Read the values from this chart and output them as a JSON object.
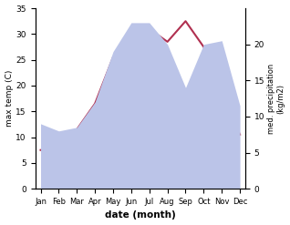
{
  "months": [
    "Jan",
    "Feb",
    "Mar",
    "Apr",
    "May",
    "Jun",
    "Jul",
    "Aug",
    "Sep",
    "Oct",
    "Nov",
    "Dec"
  ],
  "temperature": [
    7.5,
    8.0,
    11.5,
    16.5,
    25.5,
    26.0,
    31.0,
    28.5,
    32.5,
    27.5,
    18.5,
    10.5
  ],
  "precipitation": [
    9.0,
    8.0,
    8.5,
    12.0,
    19.0,
    23.0,
    23.0,
    20.0,
    14.0,
    20.0,
    20.5,
    11.5
  ],
  "temp_color": "#b03050",
  "precip_fill_color": "#bbc4e8",
  "ylabel_left": "max temp (C)",
  "ylabel_right": "med. precipitation\n(kg/m2)",
  "xlabel": "date (month)",
  "ylim_left": [
    0,
    35
  ],
  "ylim_right": [
    0,
    25
  ],
  "yticks_left": [
    0,
    5,
    10,
    15,
    20,
    25,
    30,
    35
  ],
  "yticks_right": [
    0,
    5,
    10,
    15,
    20
  ],
  "bg_color": "#ffffff"
}
